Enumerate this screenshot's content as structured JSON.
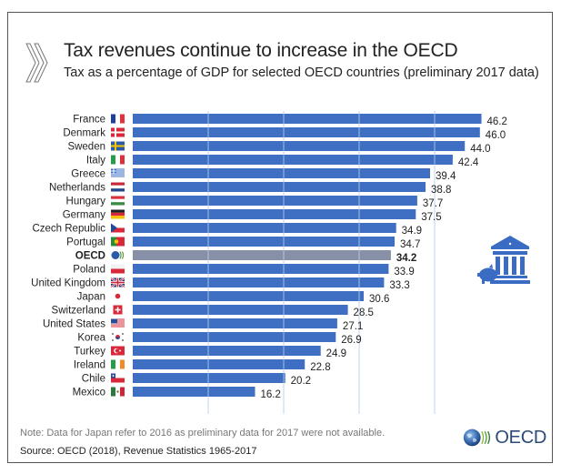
{
  "header": {
    "title": "Tax revenues continue to increase in the OECD",
    "subtitle": "Tax as a percentage of GDP for selected OECD countries (preliminary 2017 data)"
  },
  "footer": {
    "note": "Note: Data for Japan refer to 2016 as preliminary data for 2017 were not available.",
    "source": "Source: OECD (2018), Revenue Statistics 1965-2017",
    "logo_text": "OECD"
  },
  "icons": {
    "header_icon": "chevrons-icon",
    "decoration": "bank-with-piggy-bank-icon",
    "logo": "oecd-globe-logo"
  },
  "colors": {
    "bar": "#3f6fc2",
    "highlight_bar": "#8890a8",
    "gridline": "#d8e2f2",
    "icon": "#3a6cc4"
  },
  "chart_data": {
    "type": "bar",
    "orientation": "horizontal",
    "title": "Tax revenues continue to increase in the OECD",
    "subtitle": "Tax as a percentage of GDP for selected OECD countries (preliminary 2017 data)",
    "xlabel": "",
    "ylabel": "",
    "xlim": [
      0,
      50
    ],
    "grid": true,
    "gridline_values": [
      10,
      20,
      30,
      40
    ],
    "legend": "none",
    "highlight": "OECD",
    "categories": [
      "France",
      "Denmark",
      "Sweden",
      "Italy",
      "Greece",
      "Netherlands",
      "Hungary",
      "Germany",
      "Czech Republic",
      "Portugal",
      "OECD",
      "Poland",
      "United Kingdom",
      "Japan",
      "Switzerland",
      "United States",
      "Korea",
      "Turkey",
      "Ireland",
      "Chile",
      "Mexico"
    ],
    "values": [
      46.2,
      46.0,
      44.0,
      42.4,
      39.4,
      38.8,
      37.7,
      37.5,
      34.9,
      34.7,
      34.2,
      33.9,
      33.3,
      30.6,
      28.5,
      27.1,
      26.9,
      24.9,
      22.8,
      20.2,
      16.2
    ],
    "value_labels": [
      "46.2",
      "46.0",
      "44.0",
      "42.4",
      "39.4",
      "38.8",
      "37.7",
      "37.5",
      "34.9",
      "34.7",
      "34.2",
      "33.9",
      "33.3",
      "30.6",
      "28.5",
      "27.1",
      "26.9",
      "24.9",
      "22.8",
      "20.2",
      "16.2"
    ],
    "flags": [
      "france-flag",
      "denmark-flag",
      "sweden-flag",
      "italy-flag",
      "greece-flag",
      "netherlands-flag",
      "hungary-flag",
      "germany-flag",
      "czech-republic-flag",
      "portugal-flag",
      "oecd-logo",
      "poland-flag",
      "united-kingdom-flag",
      "japan-flag",
      "switzerland-flag",
      "united-states-flag",
      "korea-flag",
      "turkey-flag",
      "ireland-flag",
      "chile-flag",
      "mexico-flag"
    ]
  }
}
